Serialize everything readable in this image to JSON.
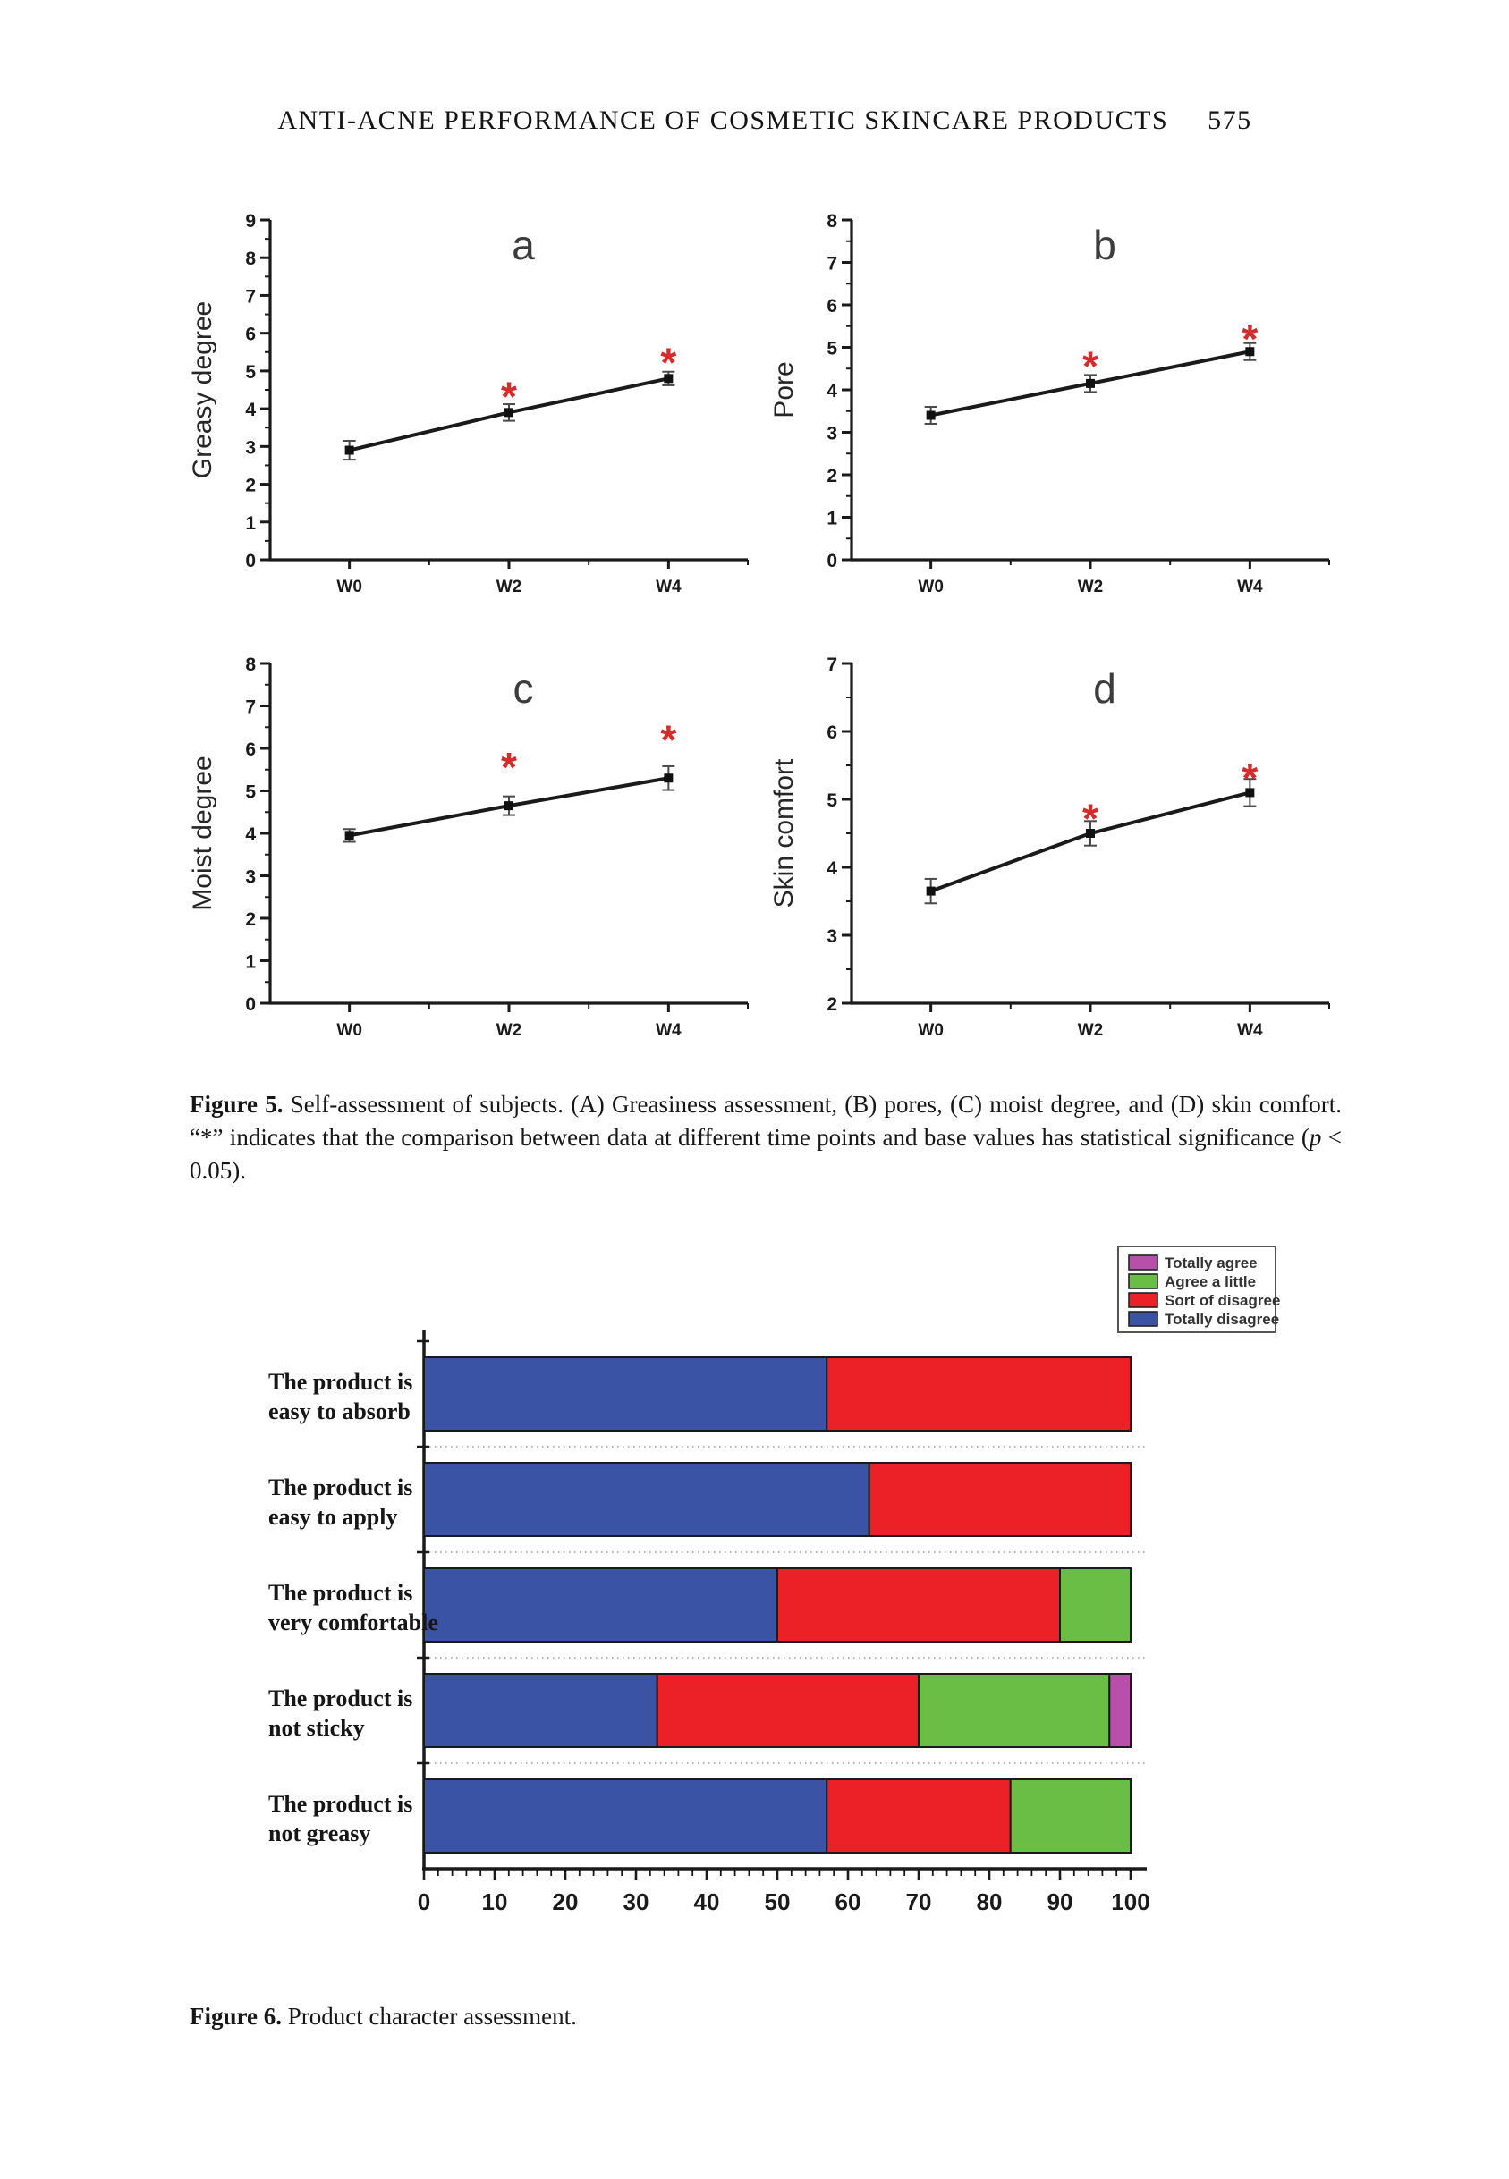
{
  "page": {
    "header_title": "ANTI-ACNE PERFORMANCE OF COSMETIC SKINCARE PRODUCTS",
    "page_number": "575"
  },
  "figure5_caption": {
    "label": "Figure 5.",
    "body": " Self-assessment of subjects. (A) Greasiness assessment, (B) pores, (C) moist degree, and (D) skin comfort. “*” indicates that the comparison between data at different time points and base values has statistical significance (",
    "p_italic": "p",
    "tail": " < 0.05)."
  },
  "figure6_caption": {
    "label": "Figure 6.",
    "body": " Product character assessment."
  },
  "chart_data": [
    {
      "id": "greasy-degree",
      "mount": "chart-a",
      "type": "line",
      "panel_label": "a",
      "ylabel": "Greasy degree",
      "ylim": [
        0,
        9
      ],
      "ytick_step": 1,
      "yminor_step": 0.5,
      "categories": [
        "W0",
        "W2",
        "W4"
      ],
      "values": [
        2.9,
        3.9,
        4.8
      ],
      "errors": [
        0.25,
        0.22,
        0.18
      ],
      "sig_y": [
        null,
        4.65,
        5.55
      ],
      "line_color": "#1a1a1a",
      "sig_color": "#d62b2b"
    },
    {
      "id": "pore",
      "mount": "chart-b",
      "type": "line",
      "panel_label": "b",
      "ylabel": "Pore",
      "ylim": [
        0,
        8
      ],
      "ytick_step": 1,
      "yminor_step": 0.5,
      "categories": [
        "W0",
        "W2",
        "W4"
      ],
      "values": [
        3.4,
        4.15,
        4.9
      ],
      "errors": [
        0.2,
        0.2,
        0.2
      ],
      "sig_y": [
        null,
        4.85,
        5.5
      ],
      "line_color": "#1a1a1a",
      "sig_color": "#d62b2b"
    },
    {
      "id": "moist-degree",
      "mount": "chart-c",
      "type": "line",
      "panel_label": "c",
      "ylabel": "Moist degree",
      "ylim": [
        0,
        8
      ],
      "ytick_step": 1,
      "yminor_step": 0.5,
      "categories": [
        "W0",
        "W2",
        "W4"
      ],
      "values": [
        3.95,
        4.65,
        5.3
      ],
      "errors": [
        0.15,
        0.22,
        0.28
      ],
      "sig_y": [
        null,
        5.85,
        6.5
      ],
      "line_color": "#1a1a1a",
      "sig_color": "#d62b2b"
    },
    {
      "id": "skin-comfort",
      "mount": "chart-d",
      "type": "line",
      "panel_label": "d",
      "ylabel": "Skin comfort",
      "ylim": [
        2,
        7
      ],
      "ytick_step": 1,
      "yminor_step": 0.5,
      "categories": [
        "W0",
        "W2",
        "W4"
      ],
      "values": [
        3.65,
        4.5,
        5.1
      ],
      "errors": [
        0.18,
        0.18,
        0.2
      ],
      "sig_y": [
        null,
        4.9,
        5.5
      ],
      "line_color": "#1a1a1a",
      "sig_color": "#d62b2b"
    },
    {
      "id": "product-character",
      "mount": "chart-product",
      "type": "stacked_bar_h",
      "categories": [
        [
          "The product is",
          "easy to absorb"
        ],
        [
          "The product is",
          "easy to apply"
        ],
        [
          "The product is",
          "very comfortable"
        ],
        [
          "The product is",
          "not sticky"
        ],
        [
          "The product is",
          "not greasy"
        ]
      ],
      "series": [
        {
          "name": "Totally disagree",
          "color": "#3a53a4",
          "values": [
            57,
            63,
            50,
            33,
            57
          ]
        },
        {
          "name": "Sort of disagree",
          "color": "#ec2127",
          "values": [
            43,
            37,
            40,
            37,
            26
          ]
        },
        {
          "name": "Agree a little",
          "color": "#6abd45",
          "values": [
            0,
            0,
            10,
            27,
            17
          ]
        },
        {
          "name": "Totally agree",
          "color": "#b850ab",
          "values": [
            0,
            0,
            0,
            3,
            0
          ]
        }
      ],
      "legend": [
        "Totally agree",
        "Agree a little",
        "Sort of disagree",
        "Totally disagree"
      ],
      "legend_position": "top-right",
      "xlim": [
        0,
        100
      ],
      "xtick_step": 10,
      "xminor_step": 2,
      "grid": "dotted-between-bars"
    }
  ]
}
